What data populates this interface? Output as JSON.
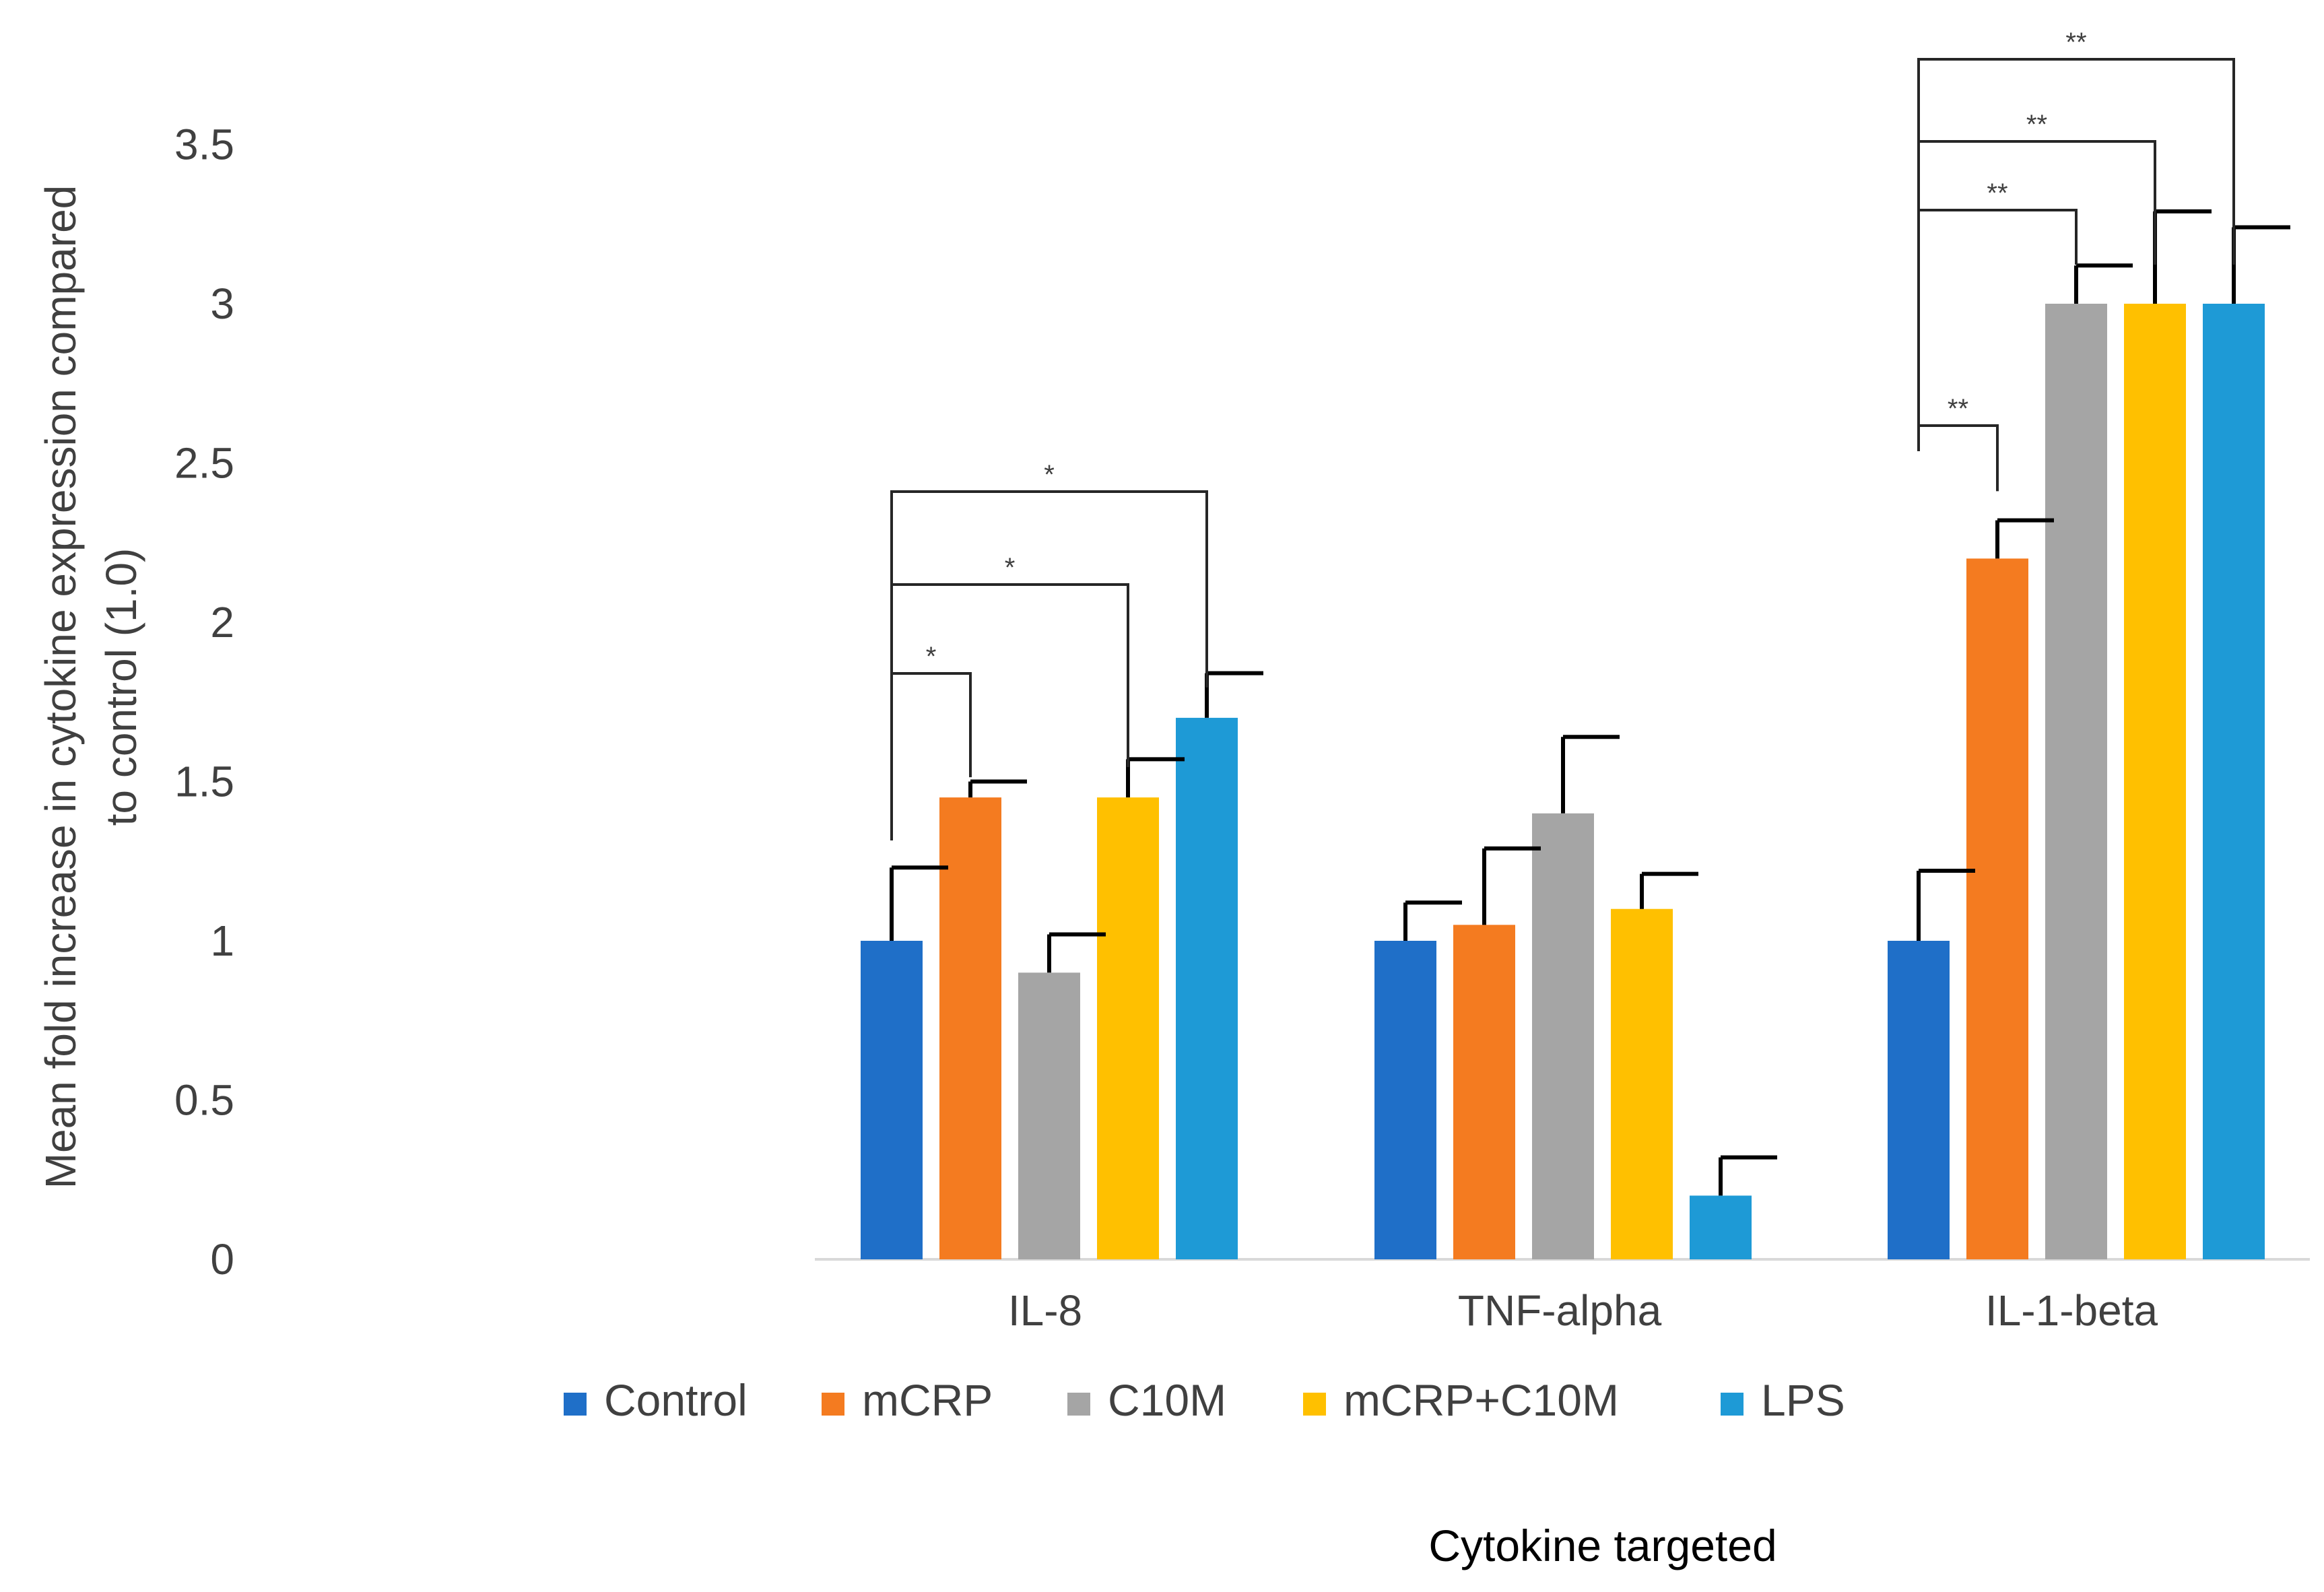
{
  "chart_data": {
    "type": "bar",
    "categories": [
      "IL-8",
      "TNF-alpha",
      "IL-1-beta"
    ],
    "series": [
      {
        "name": "Control",
        "color": "#1f6fc8",
        "values": [
          1.0,
          1.0,
          1.0
        ],
        "errors": [
          0.23,
          0.12,
          0.22
        ]
      },
      {
        "name": "mCRP",
        "color": "#f47b20",
        "values": [
          1.45,
          1.05,
          2.2
        ],
        "errors": [
          0.05,
          0.24,
          0.12
        ]
      },
      {
        "name": "C10M",
        "color": "#a5a5a5",
        "values": [
          0.9,
          1.4,
          3.0
        ],
        "errors": [
          0.12,
          0.24,
          0.12
        ]
      },
      {
        "name": "mCRP+C10M",
        "color": "#ffc000",
        "values": [
          1.45,
          1.1,
          3.0
        ],
        "errors": [
          0.12,
          0.11,
          0.29
        ]
      },
      {
        "name": "LPS",
        "color": "#1e9ad6",
        "values": [
          1.7,
          0.2,
          3.0
        ],
        "errors": [
          0.14,
          0.12,
          0.24
        ]
      }
    ],
    "xlabel": "Cytokine targeted",
    "ylabel": [
      "Mean fold increase in cytokine expression compared",
      "to control (1.0)"
    ],
    "ylim": [
      0,
      3.5
    ],
    "yticks": [
      "0",
      "0.5",
      "1",
      "1.5",
      "2",
      "2.5",
      "3",
      "3.5"
    ],
    "grid": false,
    "legend_position": "bottom",
    "significance": [
      {
        "category": 0,
        "from": 0,
        "to": 1,
        "label": "*"
      },
      {
        "category": 0,
        "from": 0,
        "to": 3,
        "label": "*"
      },
      {
        "category": 0,
        "from": 0,
        "to": 4,
        "label": "*"
      },
      {
        "category": 2,
        "from": 0,
        "to": 1,
        "label": "**"
      },
      {
        "category": 2,
        "from": 0,
        "to": 2,
        "label": "**"
      },
      {
        "category": 2,
        "from": 0,
        "to": 3,
        "label": "**"
      },
      {
        "category": 2,
        "from": 0,
        "to": 4,
        "label": "**"
      }
    ]
  }
}
